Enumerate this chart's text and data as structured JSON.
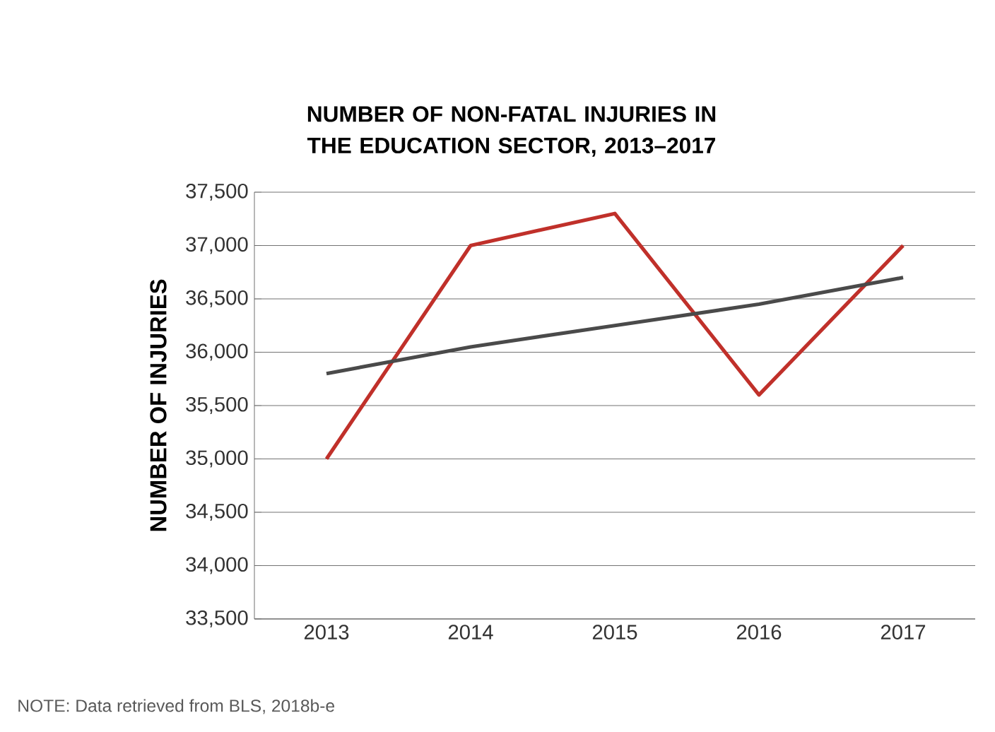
{
  "chart_data": {
    "type": "line",
    "title": "NUMBER OF NON-FATAL INJURIES IN THE EDUCATION SECTOR, 2013–2017",
    "ylabel": "NUMBER OF INJURIES",
    "categories": [
      "2013",
      "2014",
      "2015",
      "2016",
      "2017"
    ],
    "series": [
      {
        "color": "#c0302a",
        "values": [
          35000,
          37000,
          37300,
          35600,
          37000
        ]
      },
      {
        "color": "#4a4a4a",
        "values": [
          35800,
          36050,
          36250,
          36450,
          36700
        ]
      }
    ],
    "ylim": [
      33500,
      37500
    ],
    "yticks": [
      {
        "value": 33500,
        "label": "33,500"
      },
      {
        "value": 34000,
        "label": "34,000"
      },
      {
        "value": 34500,
        "label": "34,500"
      },
      {
        "value": 35000,
        "label": "35,000"
      },
      {
        "value": 35500,
        "label": "35,500"
      },
      {
        "value": 36000,
        "label": "36,000"
      },
      {
        "value": 36500,
        "label": "36,500"
      },
      {
        "value": 37000,
        "label": "37,000"
      },
      {
        "value": 37500,
        "label": "37,500"
      }
    ],
    "grid": "y",
    "marker": "none",
    "line_style": "solid",
    "annotations": [
      "NOTE: Data retrieved from BLS, 2018b-e"
    ]
  }
}
